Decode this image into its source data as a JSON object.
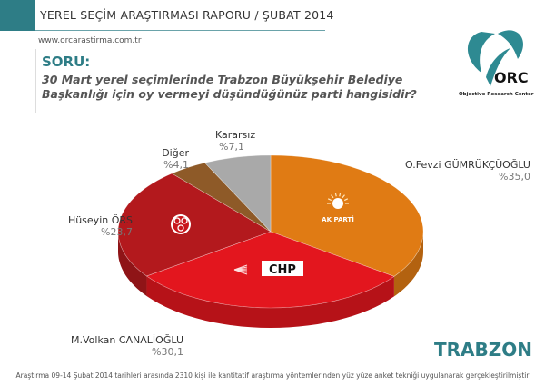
{
  "header": {
    "title": "YEREL SEÇİM ARAŞTIRMASI RAPORU / ŞUBAT 2014",
    "url": "www.orcarastirma.com.tr"
  },
  "question": {
    "label": "SORU:",
    "text": "30 Mart yerel seçimlerinde Trabzon Büyükşehir Belediye Başkanlığı için oy vermeyi düşündüğünüz parti hangisidir?"
  },
  "logo": {
    "mark": "ORC",
    "caption": "Objective Research Center"
  },
  "chart_data": {
    "type": "pie",
    "title": "30 Mart yerel seçimlerinde Trabzon Büyükşehir Belediye Başkanlığı için oy vermeyi düşündüğünüz parti hangisidir?",
    "slices": [
      {
        "name": "O.Fevzi GÜMRÜKÇÜOĞLU",
        "label": "%35,0",
        "value": 35.0,
        "party": "AK PARTİ",
        "color": "#e07b14"
      },
      {
        "name": "M.Volkan CANALİOĞLU",
        "label": "%30,1",
        "value": 30.1,
        "party": "CHP",
        "color": "#e3161e"
      },
      {
        "name": "Hüseyin ÖRS",
        "label": "%23,7",
        "value": 23.7,
        "party": "MHP",
        "color": "#b3191d"
      },
      {
        "name": "Diğer",
        "label": "%4,1",
        "value": 4.1,
        "color": "#8e5a28"
      },
      {
        "name": "Kararsız",
        "label": "%7,1",
        "value": 7.1,
        "color": "#a9a9a9"
      }
    ]
  },
  "party_marks": {
    "akp": "AK PARTİ",
    "chp": "CHP"
  },
  "region": "TRABZON",
  "footer": "Araştırma 09-14 Şubat 2014 tarihleri arasında 2310 kişi ile kantitatif araştırma yöntemlerinden yüz yüze anket tekniği uygulanarak gerçekleştirilmiştir"
}
